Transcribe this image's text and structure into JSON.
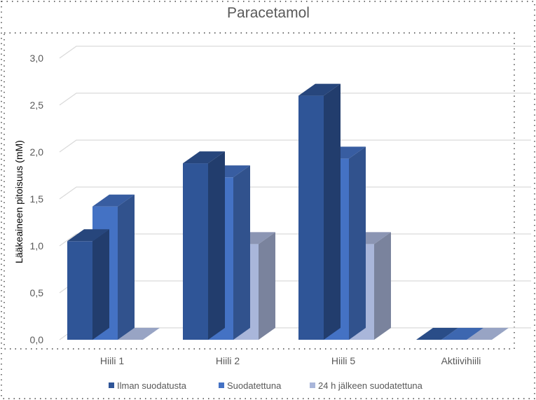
{
  "chart_data": {
    "type": "bar",
    "style": "3d-clustered-column",
    "title": "Paracetamol",
    "xlabel": "",
    "ylabel": "Lääkeaineen pitoisuus (mM)",
    "categories": [
      "Hiili 1",
      "Hiili 2",
      "Hiili 5",
      "Aktiivihiili"
    ],
    "ylim": [
      0,
      3.0
    ],
    "yticks": [
      0,
      0.5,
      1.0,
      1.5,
      2.0,
      2.5,
      3.0
    ],
    "ytick_labels": [
      "0,0",
      "0,5",
      "1,0",
      "1,5",
      "2,0",
      "2,5",
      "3,0"
    ],
    "grid": true,
    "legend_position": "bottom",
    "series": [
      {
        "name": "Ilman suodatusta",
        "values": [
          1.05,
          1.88,
          2.6,
          0.0
        ],
        "color": "#2F5597"
      },
      {
        "name": "Suodatettuna",
        "values": [
          1.42,
          1.73,
          1.93,
          0.0
        ],
        "color": "#4472C4"
      },
      {
        "name": "24 h jälkeen suodatettuna",
        "values": [
          0.0,
          1.02,
          1.02,
          0.0
        ],
        "color": "#A9B6DA"
      }
    ]
  }
}
